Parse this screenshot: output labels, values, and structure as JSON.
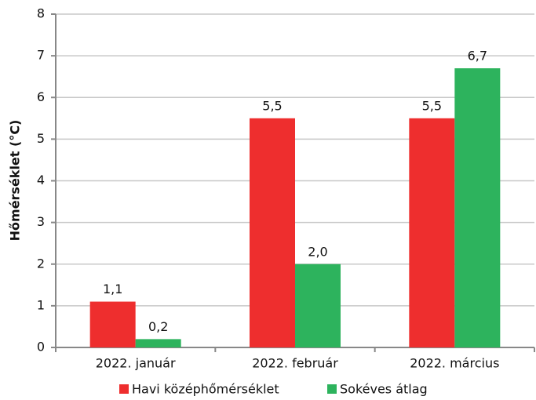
{
  "chart_data": {
    "type": "bar",
    "y_label": "Hőmérséklet (°C)",
    "categories": [
      "2022. január",
      "2022. február",
      "2022. március"
    ],
    "series": [
      {
        "name": "Havi középhőmérséklet",
        "color": "#ee2e2e",
        "values": [
          1.1,
          5.5,
          5.5
        ],
        "value_labels": [
          "1,1",
          "5,5",
          "5,5"
        ]
      },
      {
        "name": "Sokéves átlag",
        "color": "#2db35d",
        "values": [
          0.2,
          2.0,
          6.7
        ],
        "value_labels": [
          "0,2",
          "2,0",
          "6,7"
        ]
      }
    ],
    "ylim": [
      0,
      8
    ],
    "yticks": [
      0,
      1,
      2,
      3,
      4,
      5,
      6,
      7,
      8
    ],
    "grid": true,
    "legend": "bottom"
  }
}
